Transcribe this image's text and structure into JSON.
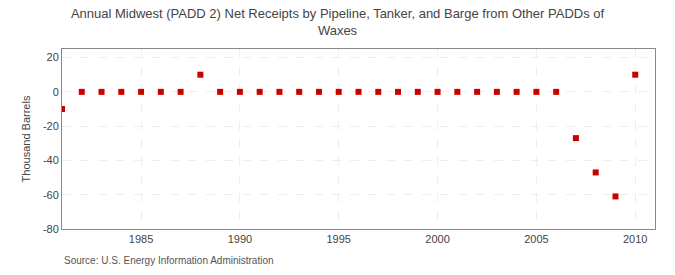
{
  "chart_data": {
    "type": "scatter",
    "title": "Annual Midwest (PADD 2) Net Receipts by Pipeline, Tanker, and Barge from Other PADDs of\nWaxes",
    "ylabel": "Thousand Barrels",
    "annotations": [
      "Source: U.S. Energy Information Administration"
    ],
    "x": [
      1981,
      1982,
      1983,
      1984,
      1985,
      1986,
      1987,
      1988,
      1989,
      1990,
      1991,
      1992,
      1993,
      1994,
      1995,
      1996,
      1997,
      1998,
      1999,
      2000,
      2001,
      2002,
      2003,
      2004,
      2005,
      2006,
      2007,
      2008,
      2009,
      2010
    ],
    "values": [
      -10,
      0,
      0,
      0,
      0,
      0,
      0,
      10,
      0,
      0,
      0,
      0,
      0,
      0,
      0,
      0,
      0,
      0,
      0,
      0,
      0,
      0,
      0,
      0,
      0,
      0,
      -27,
      -47,
      -61,
      10
    ],
    "color": "#cc0000",
    "marker": "square",
    "xlim": [
      1981,
      2011
    ],
    "ylim": [
      -80,
      25
    ],
    "xticks": [
      1985,
      1990,
      1995,
      2000,
      2005,
      2010
    ],
    "yticks": [
      -80,
      -60,
      -40,
      -20,
      0,
      20
    ],
    "grid": true
  }
}
